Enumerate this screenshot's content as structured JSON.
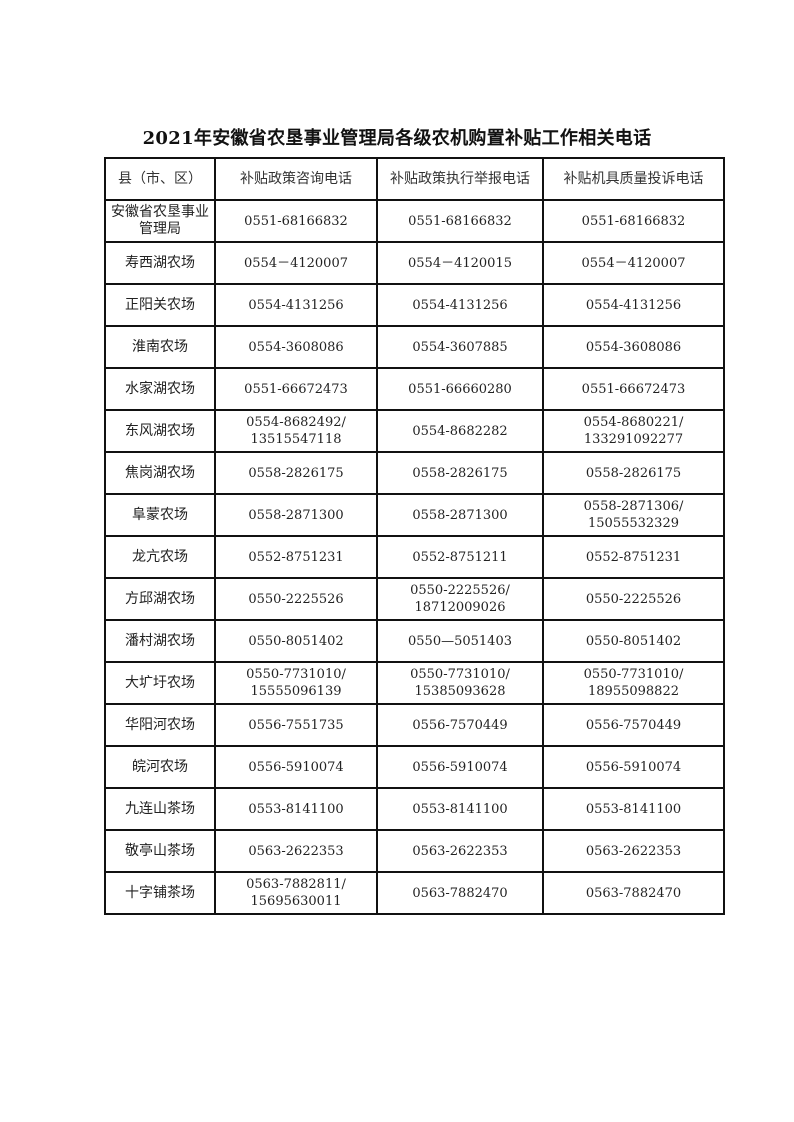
{
  "title": "2021年安徽省农垦事业管理局各级农机购置补贴工作相关电话",
  "table": {
    "headers": [
      "县（市、区）",
      "补贴政策咨询电话",
      "补贴政策执行举报电话",
      "补贴机具质量投诉电话"
    ],
    "rows": [
      {
        "unit": [
          "安徽省农垦事业",
          "管理局"
        ],
        "consult": [
          "0551-68166832"
        ],
        "report": [
          "0551-68166832"
        ],
        "complaint": [
          "0551-68166832"
        ]
      },
      {
        "unit": [
          "寿西湖农场"
        ],
        "consult": [
          "0554－4120007"
        ],
        "report": [
          "0554－4120015"
        ],
        "complaint": [
          "0554－4120007"
        ]
      },
      {
        "unit": [
          "正阳关农场"
        ],
        "consult": [
          "0554-4131256"
        ],
        "report": [
          "0554-4131256"
        ],
        "complaint": [
          "0554-4131256"
        ]
      },
      {
        "unit": [
          "淮南农场"
        ],
        "consult": [
          "0554-3608086"
        ],
        "report": [
          "0554-3607885"
        ],
        "complaint": [
          "0554-3608086"
        ]
      },
      {
        "unit": [
          "水家湖农场"
        ],
        "consult": [
          "0551-66672473"
        ],
        "report": [
          "0551-66660280"
        ],
        "complaint": [
          "0551-66672473"
        ]
      },
      {
        "unit": [
          "东风湖农场"
        ],
        "consult": [
          "0554-8682492/",
          "13515547118"
        ],
        "report": [
          "0554-8682282"
        ],
        "complaint": [
          "0554-8680221/",
          "133291092277"
        ]
      },
      {
        "unit": [
          "焦岗湖农场"
        ],
        "consult": [
          "0558-2826175"
        ],
        "report": [
          "0558-2826175"
        ],
        "complaint": [
          "0558-2826175"
        ]
      },
      {
        "unit": [
          "阜蒙农场"
        ],
        "consult": [
          "0558-2871300"
        ],
        "report": [
          "0558-2871300"
        ],
        "complaint": [
          "0558-2871306/",
          "15055532329"
        ]
      },
      {
        "unit": [
          "龙亢农场"
        ],
        "consult": [
          "0552-8751231"
        ],
        "report": [
          "0552-8751211"
        ],
        "complaint": [
          "0552-8751231"
        ]
      },
      {
        "unit": [
          "方邱湖农场"
        ],
        "consult": [
          "0550-2225526"
        ],
        "report": [
          "0550-2225526/",
          "18712009026"
        ],
        "complaint": [
          "0550-2225526"
        ]
      },
      {
        "unit": [
          "潘村湖农场"
        ],
        "consult": [
          "0550-8051402"
        ],
        "report": [
          "0550—5051403"
        ],
        "complaint": [
          "0550-8051402"
        ]
      },
      {
        "unit": [
          "大圹圩农场"
        ],
        "consult": [
          "0550-7731010/",
          "15555096139"
        ],
        "report": [
          "0550-7731010/",
          "15385093628"
        ],
        "complaint": [
          "0550-7731010/",
          "18955098822"
        ]
      },
      {
        "unit": [
          "华阳河农场"
        ],
        "consult": [
          "0556-7551735"
        ],
        "report": [
          "0556-7570449"
        ],
        "complaint": [
          "0556-7570449"
        ]
      },
      {
        "unit": [
          "皖河农场"
        ],
        "consult": [
          "0556-5910074"
        ],
        "report": [
          "0556-5910074"
        ],
        "complaint": [
          "0556-5910074"
        ]
      },
      {
        "unit": [
          "九连山茶场"
        ],
        "consult": [
          "0553-8141100"
        ],
        "report": [
          "0553-8141100"
        ],
        "complaint": [
          "0553-8141100"
        ]
      },
      {
        "unit": [
          "敬亭山茶场"
        ],
        "consult": [
          "0563-2622353"
        ],
        "report": [
          "0563-2622353"
        ],
        "complaint": [
          "0563-2622353"
        ]
      },
      {
        "unit": [
          "十字铺茶场"
        ],
        "consult": [
          "0563-7882811/",
          "15695630011"
        ],
        "report": [
          "0563-7882470"
        ],
        "complaint": [
          "0563-7882470"
        ]
      }
    ]
  }
}
